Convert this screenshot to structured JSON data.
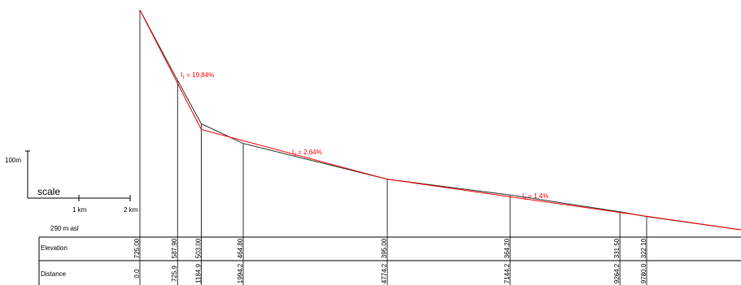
{
  "profile": {
    "scale": {
      "vertical_label": "100m",
      "title": "scale",
      "tick_labels": [
        "1 km",
        "2 km"
      ]
    },
    "datum_label": "290 m asl",
    "table": {
      "row_labels": [
        "Elevation",
        "Distance"
      ]
    },
    "stations": [
      {
        "distance": "0.0",
        "elevation": "725.00"
      },
      {
        "distance": "725.9",
        "elevation": "587.90"
      },
      {
        "distance": "1184.9",
        "elevation": "503.00"
      },
      {
        "distance": "1994.2",
        "elevation": "464.80"
      },
      {
        "distance": "4774.2",
        "elevation": "395.00"
      },
      {
        "distance": "7144.2",
        "elevation": "364.20"
      },
      {
        "distance": "9264.2",
        "elevation": "331.50"
      },
      {
        "distance": "9780.0",
        "elevation": "322.10"
      }
    ],
    "slopes": [
      {
        "symbol": "I",
        "index": "1",
        "text": " = 19,84%"
      },
      {
        "symbol": "I",
        "index": "2",
        "text": " = 2,64%"
      },
      {
        "symbol": "I",
        "index": "3",
        "text": " = 1,4%"
      }
    ],
    "colors": {
      "terrain_line": "#404040",
      "slope_line": "#ff0000",
      "grid": "#000000"
    }
  }
}
